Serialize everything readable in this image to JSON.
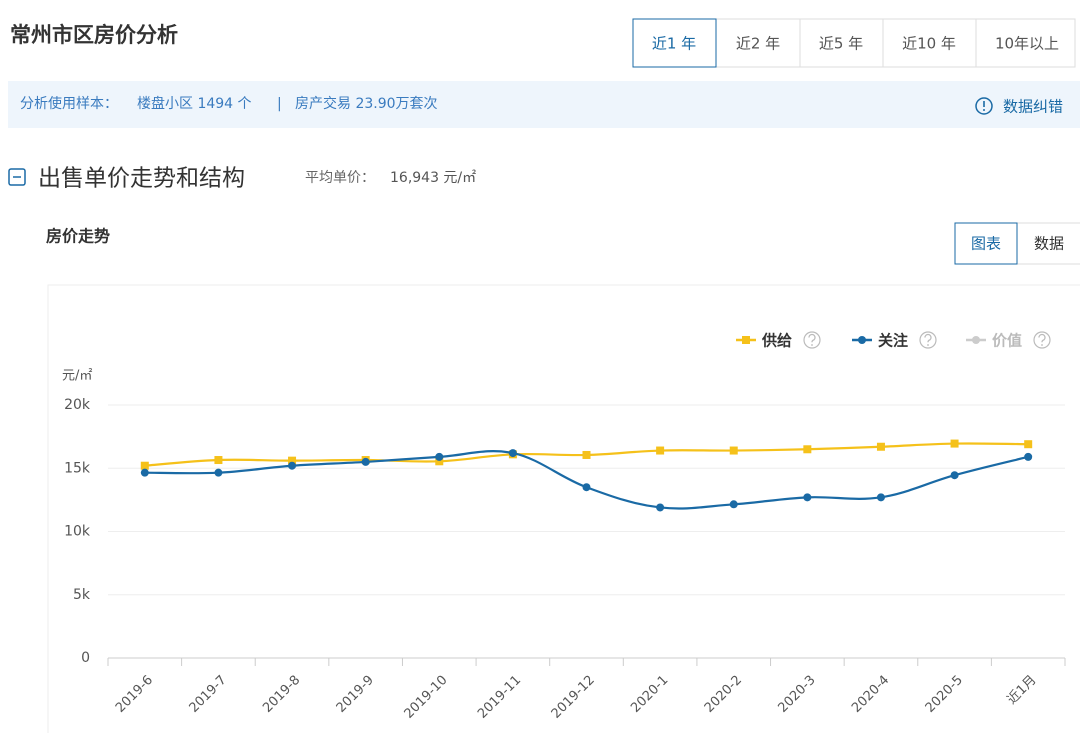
{
  "header": {
    "title": "常州市区房价分析",
    "tabs": [
      "近1 年",
      "近2 年",
      "近5 年",
      "近10 年",
      "10年以上"
    ]
  },
  "info": {
    "label": "分析使用样本：",
    "communities": "楼盘小区 1494 个",
    "separator": "|",
    "transactions": "房产交易 23.90万套次",
    "feedback": "数据纠错"
  },
  "section": {
    "title": "出售单价走势和结构",
    "avg_label": "平均单价：",
    "avg_value": "16,943 元/㎡"
  },
  "panel": {
    "title": "房价走势",
    "toggles": [
      "图表",
      "数据"
    ]
  },
  "chart_data": {
    "type": "line",
    "y_label": "元/㎡",
    "categories": [
      "2019-6",
      "2019-7",
      "2019-8",
      "2019-9",
      "2019-10",
      "2019-11",
      "2019-12",
      "2020-1",
      "2020-2",
      "2020-3",
      "2020-4",
      "2020-5",
      "近1月"
    ],
    "series": [
      {
        "name": "供给",
        "color": "#f5c11a",
        "marker": "square",
        "visible": true,
        "values": [
          15200,
          15650,
          15600,
          15650,
          15550,
          16100,
          16050,
          16400,
          16400,
          16500,
          16700,
          16950,
          16900
        ]
      },
      {
        "name": "关注",
        "color": "#1a6aa5",
        "marker": "circle",
        "visible": true,
        "values": [
          14650,
          14650,
          15200,
          15500,
          15900,
          16200,
          13500,
          11900,
          12150,
          12700,
          12700,
          14450,
          15900
        ]
      },
      {
        "name": "价值",
        "color": "#cccccc",
        "marker": "circle",
        "visible": false,
        "values": [
          null,
          null,
          null,
          null,
          null,
          null,
          null,
          null,
          null,
          null,
          null,
          null,
          null
        ]
      }
    ],
    "ylim": [
      0,
      20000
    ],
    "yticks": [
      0,
      {
        "value": 5000,
        "label": "5k"
      },
      {
        "value": 10000,
        "label": "10k"
      },
      {
        "value": 15000,
        "label": "15k"
      },
      {
        "value": 20000,
        "label": "20k"
      }
    ],
    "grid": true,
    "legend": "top-right"
  }
}
